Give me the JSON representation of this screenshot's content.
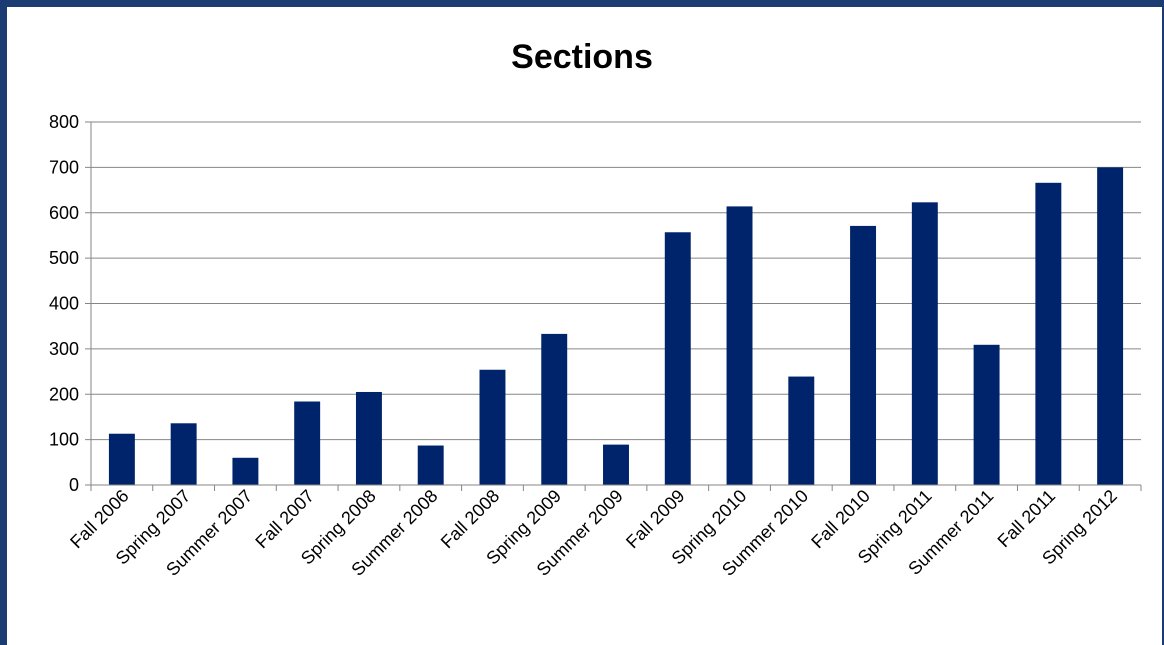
{
  "chart_data": {
    "type": "bar",
    "title": "Sections",
    "categories": [
      "Fall 2006",
      "Spring 2007",
      "Summer 2007",
      "Fall 2007",
      "Spring 2008",
      "Summer 2008",
      "Fall 2008",
      "Spring 2009",
      "Summer 2009",
      "Fall 2009",
      "Spring 2010",
      "Summer 2010",
      "Fall 2010",
      "Spring 2011",
      "Summer 2011",
      "Fall 2011",
      "Spring 2012"
    ],
    "values": [
      113,
      136,
      60,
      184,
      205,
      87,
      254,
      333,
      89,
      557,
      614,
      239,
      571,
      623,
      309,
      666,
      700
    ],
    "ylim": [
      0,
      800
    ],
    "yticks": [
      0,
      100,
      200,
      300,
      400,
      500,
      600,
      700,
      800
    ],
    "xlabel": "",
    "ylabel": "",
    "grid": true,
    "legend": "none",
    "bar_color": "#00246b",
    "frame_color": "#1b3c73",
    "gridline_color": "#868686"
  }
}
